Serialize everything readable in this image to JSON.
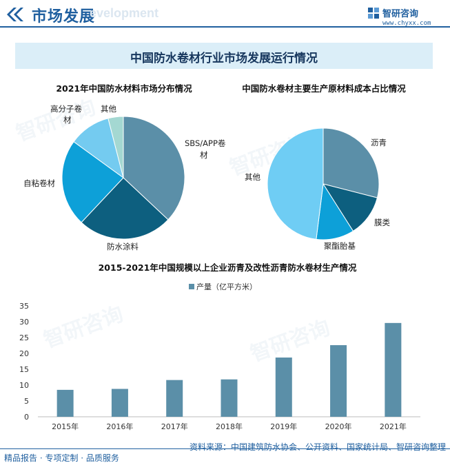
{
  "header": {
    "title": "市场发展",
    "ghost_text": "evelopment",
    "brand_name": "智研咨询",
    "brand_url": "www.chyxx.com"
  },
  "banner": {
    "title": "中国防水卷材行业市场发展运行情况"
  },
  "watermark": {
    "text": "智研咨询"
  },
  "chart_data": [
    {
      "type": "pie",
      "title": "2021年中国防水材料市场分布情况",
      "slices": [
        {
          "label": "SBS/APP卷材",
          "value": 37,
          "color": "#5b8fa8"
        },
        {
          "label": "防水涂料",
          "value": 25,
          "color": "#0d5f7f"
        },
        {
          "label": "自粘卷材",
          "value": 23,
          "color": "#0da0d8"
        },
        {
          "label": "高分子卷材",
          "value": 11,
          "color": "#74cbf0"
        },
        {
          "label": "其他",
          "value": 4,
          "color": "#a4d8d2"
        }
      ]
    },
    {
      "type": "pie",
      "title": "中国防水卷材主要生产原材料成本占比情况",
      "slices": [
        {
          "label": "沥青",
          "value": 29,
          "color": "#5b8fa8"
        },
        {
          "label": "膜类",
          "value": 12,
          "color": "#0d5f7f"
        },
        {
          "label": "聚酯胎基",
          "value": 11,
          "color": "#0da0d8"
        },
        {
          "label": "其他",
          "value": 48,
          "color": "#6fcdf4"
        }
      ]
    },
    {
      "type": "bar",
      "title": "2015-2021年中国规模以上企业沥青及改性沥青防水卷材生产情况",
      "categories": [
        "2015年",
        "2016年",
        "2017年",
        "2018年",
        "2019年",
        "2020年",
        "2021年"
      ],
      "series": [
        {
          "name": "产量（亿平方米）",
          "values": [
            8.5,
            8.8,
            11.6,
            11.8,
            18.7,
            22.6,
            29.6
          ],
          "color": "#5b8fa8"
        }
      ],
      "ylim": [
        0,
        35
      ],
      "yticks": [
        0,
        5,
        10,
        15,
        20,
        25,
        30,
        35
      ],
      "legend": "top-center"
    }
  ],
  "labels": {
    "pie1": [
      "SBS/APP卷",
      "材",
      "防水涂料",
      "自粘卷材",
      "高分子卷",
      "材",
      "其他"
    ],
    "pie2": [
      "沥青",
      "膜类",
      "聚酯胎基",
      "其他"
    ]
  },
  "footer": {
    "left": "精品报告 · 专项定制 · 品质服务",
    "source": "资料来源：中国建筑防水协会、公开资料、国家统计局、智研咨询整理"
  }
}
